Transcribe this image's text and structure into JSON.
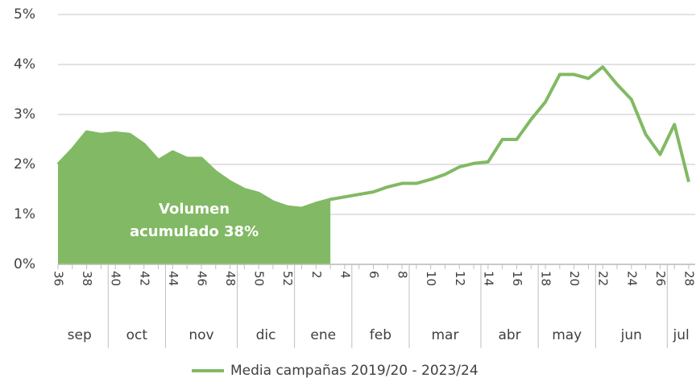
{
  "chart_data": {
    "type": "line",
    "categories": [
      "36",
      null,
      "38",
      null,
      "40",
      null,
      "42",
      null,
      "44",
      null,
      "46",
      null,
      "48",
      null,
      "50",
      null,
      "52",
      null,
      "2",
      null,
      "4",
      null,
      "6",
      null,
      "8",
      null,
      "10",
      null,
      "12",
      null,
      "14",
      null,
      "16",
      null,
      "18",
      null,
      "20",
      null,
      "22",
      null,
      "24",
      null,
      "26",
      null,
      "28"
    ],
    "month_groups": [
      {
        "label": "sep",
        "weeks": 4
      },
      {
        "label": "oct",
        "weeks": 4
      },
      {
        "label": "nov",
        "weeks": 5
      },
      {
        "label": "dic",
        "weeks": 4
      },
      {
        "label": "ene",
        "weeks": 4
      },
      {
        "label": "feb",
        "weeks": 4
      },
      {
        "label": "mar",
        "weeks": 5
      },
      {
        "label": "abr",
        "weeks": 4
      },
      {
        "label": "may",
        "weeks": 4
      },
      {
        "label": "jun",
        "weeks": 5
      },
      {
        "label": "jul",
        "weeks": 2
      }
    ],
    "series": [
      {
        "name": "Media campañas 2019/20 - 2023/24",
        "color": "#82b964",
        "values": [
          2.0,
          2.3,
          2.65,
          2.6,
          2.63,
          2.6,
          2.4,
          2.08,
          2.25,
          2.12,
          2.12,
          1.85,
          1.65,
          1.5,
          1.42,
          1.25,
          1.15,
          1.12,
          1.22,
          1.3,
          1.35,
          1.4,
          1.45,
          1.55,
          1.62,
          1.62,
          1.7,
          1.8,
          1.95,
          2.02,
          2.05,
          2.5,
          2.5,
          2.9,
          3.25,
          3.8,
          3.8,
          3.72,
          3.95,
          3.6,
          3.3,
          2.6,
          2.2,
          2.8,
          1.65
        ]
      }
    ],
    "shaded_range": [
      "36",
      "2"
    ],
    "annotation": [
      "Volumen",
      "acumulado 38%"
    ],
    "ylim": [
      0,
      5
    ],
    "yticks": [
      {
        "value": 0,
        "label": "0%"
      },
      {
        "value": 1,
        "label": "1%"
      },
      {
        "value": 2,
        "label": "2%"
      },
      {
        "value": 3,
        "label": "3%"
      },
      {
        "value": 4,
        "label": "4%"
      },
      {
        "value": 5,
        "label": "5%"
      }
    ],
    "grid": true,
    "legend": "bottom"
  }
}
